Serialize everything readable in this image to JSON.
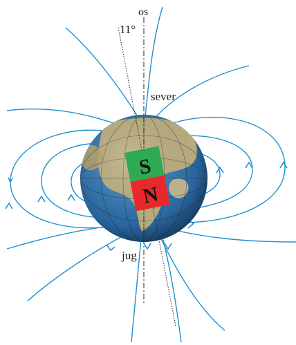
{
  "labels": {
    "axis": "os",
    "angle": "11°",
    "north": "sever",
    "south": "jug"
  },
  "magnet": {
    "top_pole": "S",
    "bottom_pole": "N",
    "top_color": "#2eaa52",
    "bottom_color": "#e8282a"
  },
  "colors": {
    "field_line": "#1d8fd0",
    "ocean": "#2f6fa8",
    "land": "#c9b27a",
    "axis_line": "#222222"
  }
}
